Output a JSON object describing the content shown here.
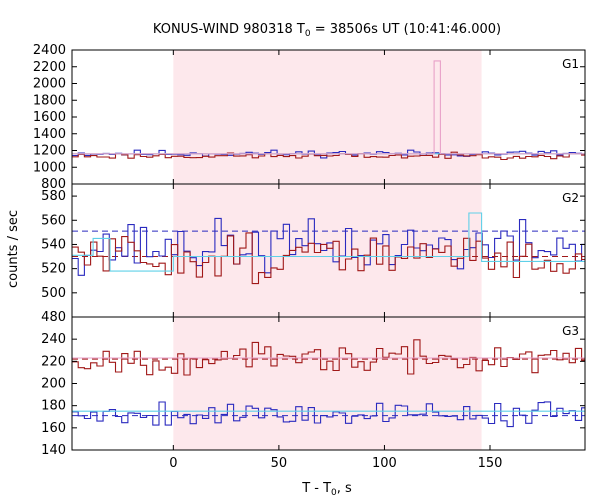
{
  "chart_data": {
    "type": "line",
    "title_prefix": "KONUS-WIND 980318 T",
    "title_sub": "0",
    "title_suffix": " = 38506s UT (10:41:46.000)",
    "xlabel_prefix": "T - T",
    "xlabel_sub": "0",
    "xlabel_suffix": ", s",
    "ylabel": "counts / sec",
    "xlim": [
      -48,
      195
    ],
    "xticks": [
      0,
      50,
      100,
      150
    ],
    "highlight": {
      "start": 0,
      "end": 146,
      "color": "#fde8ec"
    },
    "colors": {
      "background": "#ffffff",
      "highlight": "#fde8ec",
      "blue": "#2a2abf",
      "red": "#a01818",
      "cyan": "#5fd0e8",
      "pink": "#e8a0c8"
    },
    "panels": [
      {
        "label": "G1",
        "ylim": [
          800,
          2400
        ],
        "yticks": [
          800,
          1000,
          1200,
          1400,
          1600,
          1800,
          2000,
          2200,
          2400
        ],
        "step": 2.944,
        "series": [
          {
            "color": "blue",
            "kind": "noise",
            "seed": 11,
            "mean": 1165,
            "noise": 30
          },
          {
            "color": "red",
            "kind": "noise",
            "seed": 23,
            "mean": 1135,
            "noise": 25
          },
          {
            "color": "cyan",
            "kind": "level",
            "segments": [
              [
                -48,
                1160
              ],
              [
                195,
                1160
              ]
            ]
          },
          {
            "color": "pink",
            "kind": "level",
            "segments": [
              [
                -48,
                1160
              ],
              [
                123.5,
                1160
              ],
              [
                123.5,
                2270
              ],
              [
                126.5,
                2270
              ],
              [
                126.5,
                1160
              ],
              [
                195,
                1160
              ]
            ]
          }
        ],
        "dashed": []
      },
      {
        "label": "G2",
        "ylim": [
          480,
          590
        ],
        "yticks": [
          480,
          500,
          520,
          540,
          560,
          580
        ],
        "step": 2.944,
        "series": [
          {
            "color": "blue",
            "kind": "noise",
            "seed": 37,
            "mean": 538,
            "noise": 16
          },
          {
            "color": "red",
            "kind": "noise",
            "seed": 51,
            "mean": 530,
            "noise": 15
          },
          {
            "color": "cyan",
            "kind": "level",
            "segments": [
              [
                -48,
                531
              ],
              [
                -38,
                531
              ],
              [
                -38,
                545
              ],
              [
                -30,
                545
              ],
              [
                -30,
                518
              ],
              [
                0,
                518
              ],
              [
                0,
                530
              ],
              [
                140,
                530
              ],
              [
                140,
                566
              ],
              [
                146,
                566
              ],
              [
                146,
                526
              ],
              [
                195,
                526
              ]
            ]
          }
        ],
        "dashed": [
          {
            "color": "blue",
            "value": 551
          },
          {
            "color": "red",
            "value": 530
          }
        ]
      },
      {
        "label": "G3",
        "ylim": [
          140,
          260
        ],
        "yticks": [
          140,
          160,
          180,
          200,
          220,
          240
        ],
        "step": 2.944,
        "series": [
          {
            "color": "red",
            "kind": "noise",
            "seed": 67,
            "mean": 222,
            "noise": 10
          },
          {
            "color": "blue",
            "kind": "noise",
            "seed": 79,
            "mean": 173,
            "noise": 9
          },
          {
            "color": "cyan",
            "kind": "level",
            "segments": [
              [
                -48,
                175
              ],
              [
                195,
                175
              ]
            ]
          },
          {
            "color": "pink",
            "kind": "level",
            "segments": [
              [
                -48,
                223
              ],
              [
                195,
                223
              ]
            ]
          }
        ],
        "dashed": [
          {
            "color": "red",
            "value": 222
          },
          {
            "color": "blue",
            "value": 171
          }
        ]
      }
    ]
  }
}
